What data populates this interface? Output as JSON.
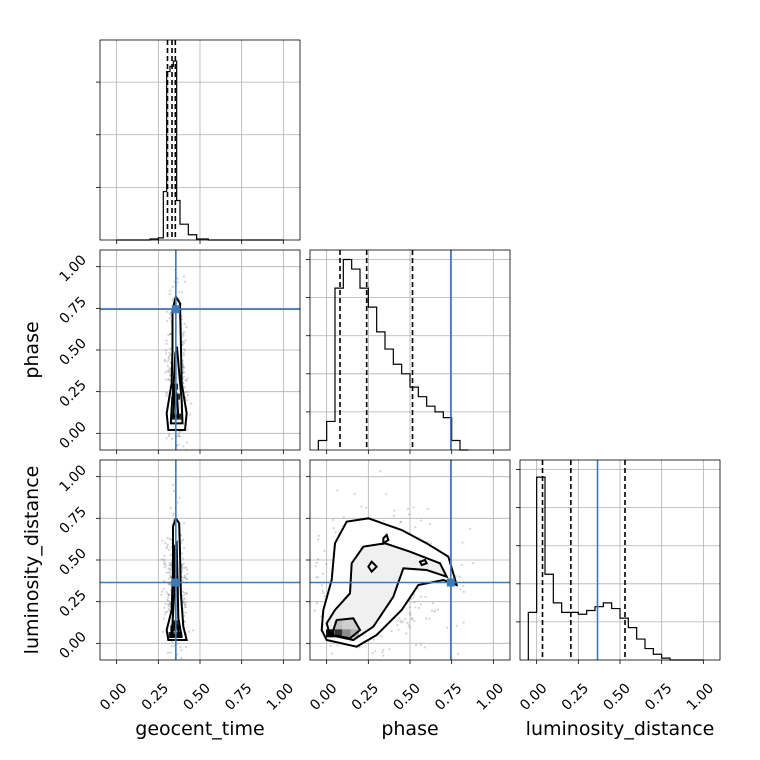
{
  "chart_data": {
    "type": "corner",
    "parameters": [
      "geocent_time",
      "phase",
      "luminosity_distance"
    ],
    "axis_labels": {
      "x": [
        "geocent_time",
        "phase",
        "luminosity_distance"
      ],
      "y": [
        "",
        "phase",
        "luminosity_distance"
      ]
    },
    "tick_values": [
      0.0,
      0.25,
      0.5,
      0.75,
      1.0
    ],
    "tick_labels": [
      "0.00",
      "0.25",
      "0.50",
      "0.75",
      "1.00"
    ],
    "range": [
      -0.1,
      1.1
    ],
    "grid": true,
    "colors": {
      "truth": "#3d7ab8",
      "lines": "#000000",
      "samples": "#6e6e6e"
    },
    "truths": {
      "geocent_time": 0.355,
      "phase": 0.745,
      "luminosity_distance": 0.365
    },
    "quantiles": {
      "geocent_time": [
        0.305,
        0.332,
        0.352
      ],
      "phase": [
        0.08,
        0.24,
        0.515
      ],
      "luminosity_distance": [
        0.035,
        0.205,
        0.53
      ]
    },
    "histograms": {
      "geocent_time": {
        "ymax": 3.8,
        "edges": [
          0.0,
          0.05,
          0.1,
          0.15,
          0.2,
          0.25,
          0.28,
          0.3,
          0.32,
          0.34,
          0.36,
          0.38,
          0.43,
          0.48,
          0.55,
          0.6,
          0.7,
          0.8,
          0.9,
          1.0
        ],
        "counts": [
          0.0,
          0.0,
          0.0,
          0.0,
          0.02,
          0.04,
          0.92,
          3.2,
          3.3,
          3.4,
          0.75,
          0.3,
          0.1,
          0.02,
          0.0,
          0.0,
          0.0,
          0.0,
          0.0
        ]
      },
      "phase": {
        "ymax": 1.05,
        "edges": [
          -0.05,
          0.0,
          0.05,
          0.1,
          0.15,
          0.2,
          0.25,
          0.3,
          0.35,
          0.4,
          0.45,
          0.5,
          0.55,
          0.6,
          0.65,
          0.7,
          0.75,
          0.8,
          0.85
        ],
        "counts": [
          0.05,
          0.15,
          0.85,
          1.0,
          0.95,
          0.85,
          0.75,
          0.62,
          0.53,
          0.45,
          0.4,
          0.33,
          0.28,
          0.23,
          0.2,
          0.17,
          0.05,
          0.0
        ]
      },
      "luminosity_distance": {
        "ymax": 1.05,
        "edges": [
          -0.05,
          0.0,
          0.05,
          0.1,
          0.15,
          0.2,
          0.25,
          0.3,
          0.35,
          0.4,
          0.45,
          0.5,
          0.55,
          0.6,
          0.65,
          0.7,
          0.75,
          0.8,
          0.85,
          0.9,
          1.0
        ],
        "counts": [
          0.25,
          0.96,
          0.45,
          0.3,
          0.25,
          0.25,
          0.24,
          0.26,
          0.28,
          0.3,
          0.27,
          0.22,
          0.17,
          0.11,
          0.06,
          0.03,
          0.01,
          0.0,
          0.0,
          0.0
        ]
      }
    },
    "joint_2d": [
      {
        "x": "geocent_time",
        "y": "phase",
        "contours": [
          [
            [
              0.31,
              0.02
            ],
            [
              0.41,
              0.02
            ],
            [
              0.42,
              0.12
            ],
            [
              0.39,
              0.3
            ],
            [
              0.385,
              0.55
            ],
            [
              0.38,
              0.78
            ],
            [
              0.355,
              0.82
            ],
            [
              0.335,
              0.74
            ],
            [
              0.335,
              0.5
            ],
            [
              0.33,
              0.3
            ],
            [
              0.3,
              0.12
            ]
          ],
          [
            [
              0.325,
              0.06
            ],
            [
              0.395,
              0.06
            ],
            [
              0.39,
              0.2
            ],
            [
              0.372,
              0.4
            ],
            [
              0.362,
              0.52
            ],
            [
              0.352,
              0.48
            ],
            [
              0.342,
              0.3
            ],
            [
              0.33,
              0.15
            ]
          ],
          [
            [
              0.34,
              0.1
            ],
            [
              0.37,
              0.1
            ],
            [
              0.362,
              0.22
            ],
            [
              0.35,
              0.28
            ],
            [
              0.345,
              0.2
            ]
          ]
        ]
      },
      {
        "x": "geocent_time",
        "y": "luminosity_distance",
        "contours": [
          [
            [
              0.31,
              0.02
            ],
            [
              0.42,
              0.02
            ],
            [
              0.4,
              0.1
            ],
            [
              0.385,
              0.3
            ],
            [
              0.38,
              0.55
            ],
            [
              0.375,
              0.72
            ],
            [
              0.355,
              0.75
            ],
            [
              0.338,
              0.7
            ],
            [
              0.338,
              0.45
            ],
            [
              0.33,
              0.2
            ],
            [
              0.3,
              0.08
            ]
          ],
          [
            [
              0.325,
              0.04
            ],
            [
              0.39,
              0.04
            ],
            [
              0.37,
              0.15
            ],
            [
              0.365,
              0.4
            ],
            [
              0.36,
              0.6
            ],
            [
              0.348,
              0.58
            ],
            [
              0.345,
              0.3
            ],
            [
              0.335,
              0.12
            ]
          ],
          [
            [
              0.33,
              0.05
            ],
            [
              0.375,
              0.05
            ],
            [
              0.365,
              0.1
            ],
            [
              0.35,
              0.12
            ],
            [
              0.34,
              0.09
            ]
          ]
        ]
      },
      {
        "x": "phase",
        "y": "luminosity_distance",
        "contours": [
          [
            [
              0.0,
              0.02
            ],
            [
              0.18,
              -0.02
            ],
            [
              0.3,
              0.05
            ],
            [
              0.45,
              0.2
            ],
            [
              0.55,
              0.35
            ],
            [
              0.7,
              0.38
            ],
            [
              0.78,
              0.35
            ],
            [
              0.73,
              0.52
            ],
            [
              0.6,
              0.6
            ],
            [
              0.45,
              0.68
            ],
            [
              0.25,
              0.75
            ],
            [
              0.12,
              0.73
            ],
            [
              0.05,
              0.6
            ],
            [
              0.03,
              0.38
            ],
            [
              -0.02,
              0.2
            ],
            [
              -0.03,
              0.08
            ]
          ],
          [
            [
              0.02,
              0.05
            ],
            [
              0.16,
              0.02
            ],
            [
              0.28,
              0.1
            ],
            [
              0.4,
              0.28
            ],
            [
              0.46,
              0.45
            ],
            [
              0.6,
              0.44
            ],
            [
              0.72,
              0.4
            ],
            [
              0.68,
              0.48
            ],
            [
              0.5,
              0.55
            ],
            [
              0.35,
              0.6
            ],
            [
              0.22,
              0.58
            ],
            [
              0.15,
              0.48
            ],
            [
              0.14,
              0.3
            ],
            [
              0.05,
              0.2
            ],
            [
              0.0,
              0.12
            ]
          ],
          [
            [
              0.03,
              0.05
            ],
            [
              0.14,
              0.03
            ],
            [
              0.2,
              0.08
            ],
            [
              0.16,
              0.15
            ],
            [
              0.06,
              0.14
            ]
          ],
          [
            [
              0.34,
              0.6
            ],
            [
              0.37,
              0.62
            ],
            [
              0.36,
              0.65
            ],
            [
              0.34,
              0.63
            ]
          ],
          [
            [
              0.27,
              0.43
            ],
            [
              0.3,
              0.46
            ],
            [
              0.27,
              0.49
            ],
            [
              0.25,
              0.46
            ]
          ],
          [
            [
              0.57,
              0.47
            ],
            [
              0.6,
              0.48
            ],
            [
              0.59,
              0.5
            ],
            [
              0.56,
              0.49
            ]
          ]
        ],
        "dense_cells": [
          [
            0.02,
            0.06,
            0.95
          ],
          [
            0.07,
            0.06,
            0.8
          ],
          [
            0.12,
            0.06,
            0.45
          ],
          [
            0.17,
            0.06,
            0.3
          ],
          [
            0.07,
            0.11,
            0.25
          ]
        ]
      }
    ]
  }
}
